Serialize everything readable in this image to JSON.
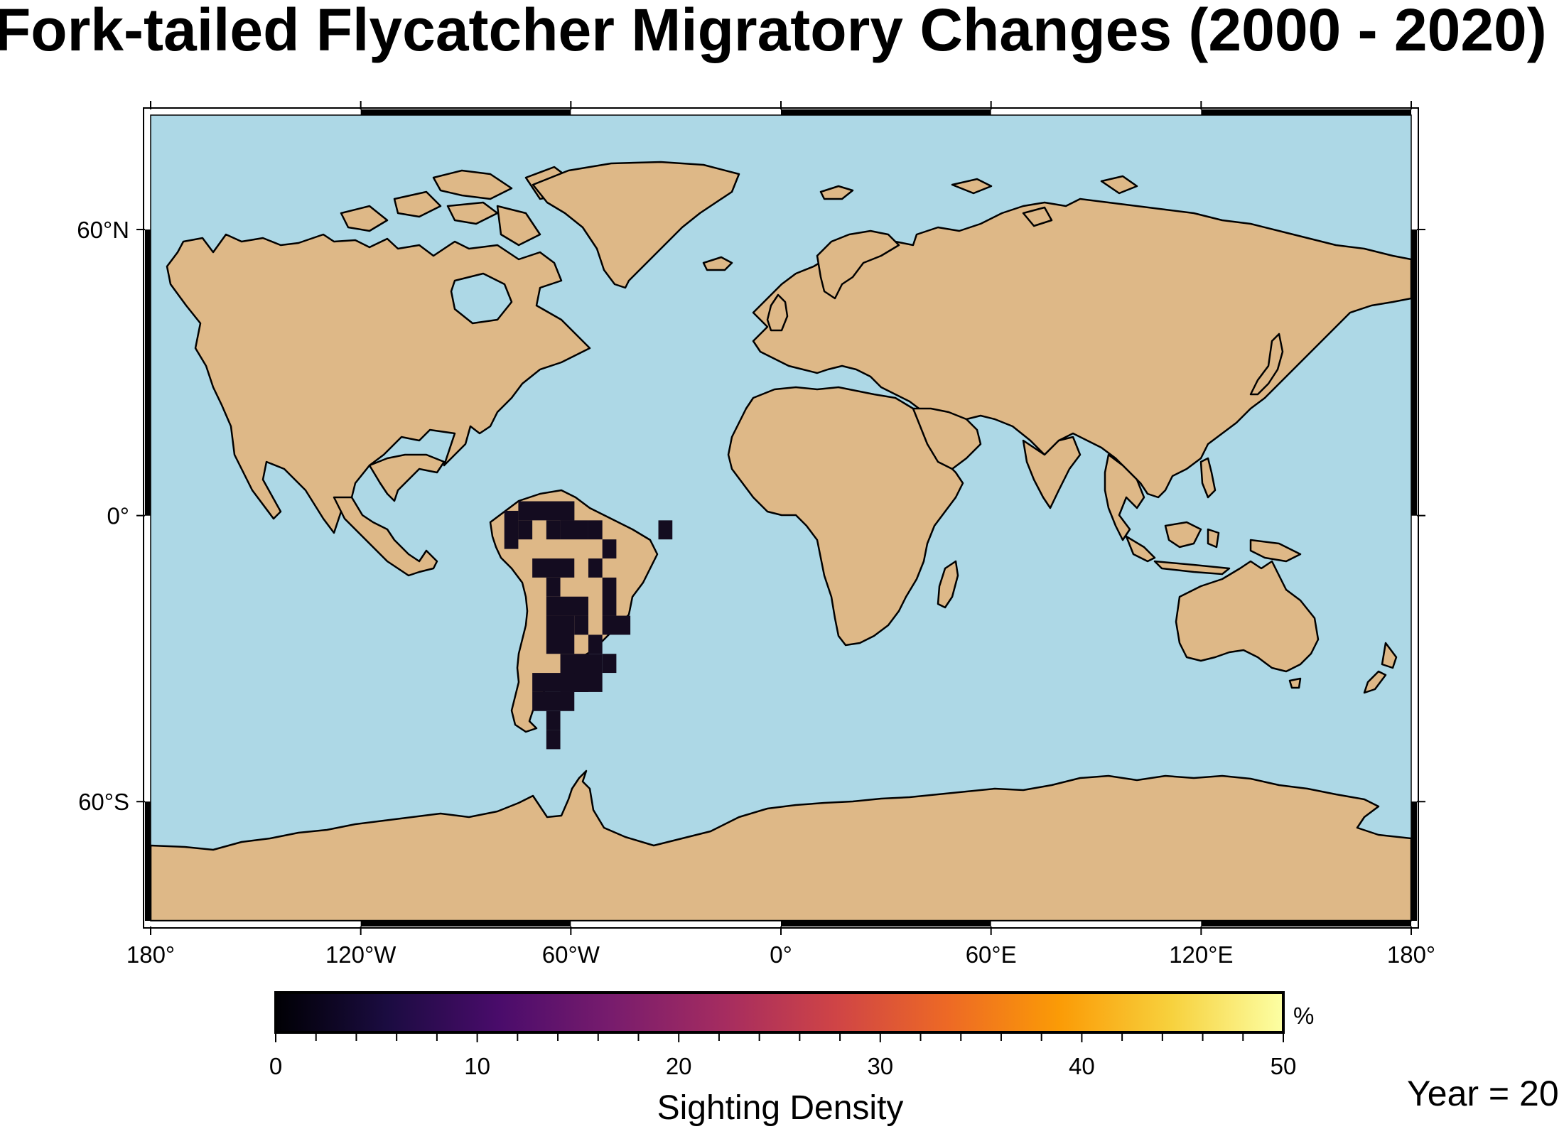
{
  "title": "Fork-tailed Flycatcher Migratory Changes (2000 - 2020)",
  "map": {
    "projection": "equirectangular",
    "ocean_color": "#add8e6",
    "land_color": "#deb887",
    "density_color": "#140c20",
    "lon_ticks": [
      "180°",
      "120°W",
      "60°W",
      "0°",
      "60°E",
      "120°E",
      "180°"
    ],
    "lat_ticks": [
      "60°N",
      "0°",
      "60°S"
    ]
  },
  "density_cells": [
    {
      "lon": -79,
      "lat": 1,
      "w": 4,
      "h": 8
    },
    {
      "lon": -75,
      "lat": 3,
      "w": 16,
      "h": 4
    },
    {
      "lon": -75,
      "lat": -1,
      "w": 4,
      "h": 4
    },
    {
      "lon": -67,
      "lat": -1,
      "w": 4,
      "h": 4
    },
    {
      "lon": -63,
      "lat": 3,
      "w": 4,
      "h": 4
    },
    {
      "lon": -63,
      "lat": -1,
      "w": 8,
      "h": 4
    },
    {
      "lon": -55,
      "lat": -1,
      "w": 4,
      "h": 4
    },
    {
      "lon": -51,
      "lat": -5,
      "w": 4,
      "h": 4
    },
    {
      "lon": -35,
      "lat": -1,
      "w": 4,
      "h": 4
    },
    {
      "lon": -71,
      "lat": -9,
      "w": 12,
      "h": 4
    },
    {
      "lon": -55,
      "lat": -9,
      "w": 4,
      "h": 4
    },
    {
      "lon": -67,
      "lat": -13,
      "w": 4,
      "h": 4
    },
    {
      "lon": -67,
      "lat": -17,
      "w": 12,
      "h": 4
    },
    {
      "lon": -51,
      "lat": -13,
      "w": 4,
      "h": 8
    },
    {
      "lon": -67,
      "lat": -21,
      "w": 8,
      "h": 8
    },
    {
      "lon": -59,
      "lat": -21,
      "w": 4,
      "h": 4
    },
    {
      "lon": -51,
      "lat": -21,
      "w": 8,
      "h": 4
    },
    {
      "lon": -63,
      "lat": -29,
      "w": 12,
      "h": 8
    },
    {
      "lon": -55,
      "lat": -25,
      "w": 4,
      "h": 4
    },
    {
      "lon": -71,
      "lat": -33,
      "w": 16,
      "h": 4
    },
    {
      "lon": -51,
      "lat": -29,
      "w": 4,
      "h": 4
    },
    {
      "lon": -59,
      "lat": -33,
      "w": 4,
      "h": 4
    },
    {
      "lon": -71,
      "lat": -37,
      "w": 12,
      "h": 4
    },
    {
      "lon": -67,
      "lat": -41,
      "w": 4,
      "h": 4
    },
    {
      "lon": -67,
      "lat": -45,
      "w": 4,
      "h": 4
    }
  ],
  "colorbar": {
    "min": 0,
    "max": 50,
    "tick_labels": [
      "0",
      "10",
      "20",
      "30",
      "40",
      "50"
    ],
    "unit": "%",
    "label": "Sighting Density",
    "colormap": "inferno",
    "stops": [
      "#000004",
      "#1b0c41",
      "#4a0c6b",
      "#781c6d",
      "#a52c60",
      "#cf4446",
      "#ed6925",
      "#fb9b06",
      "#f7d13d",
      "#fcffa4"
    ]
  },
  "year_label": "Year = 20"
}
